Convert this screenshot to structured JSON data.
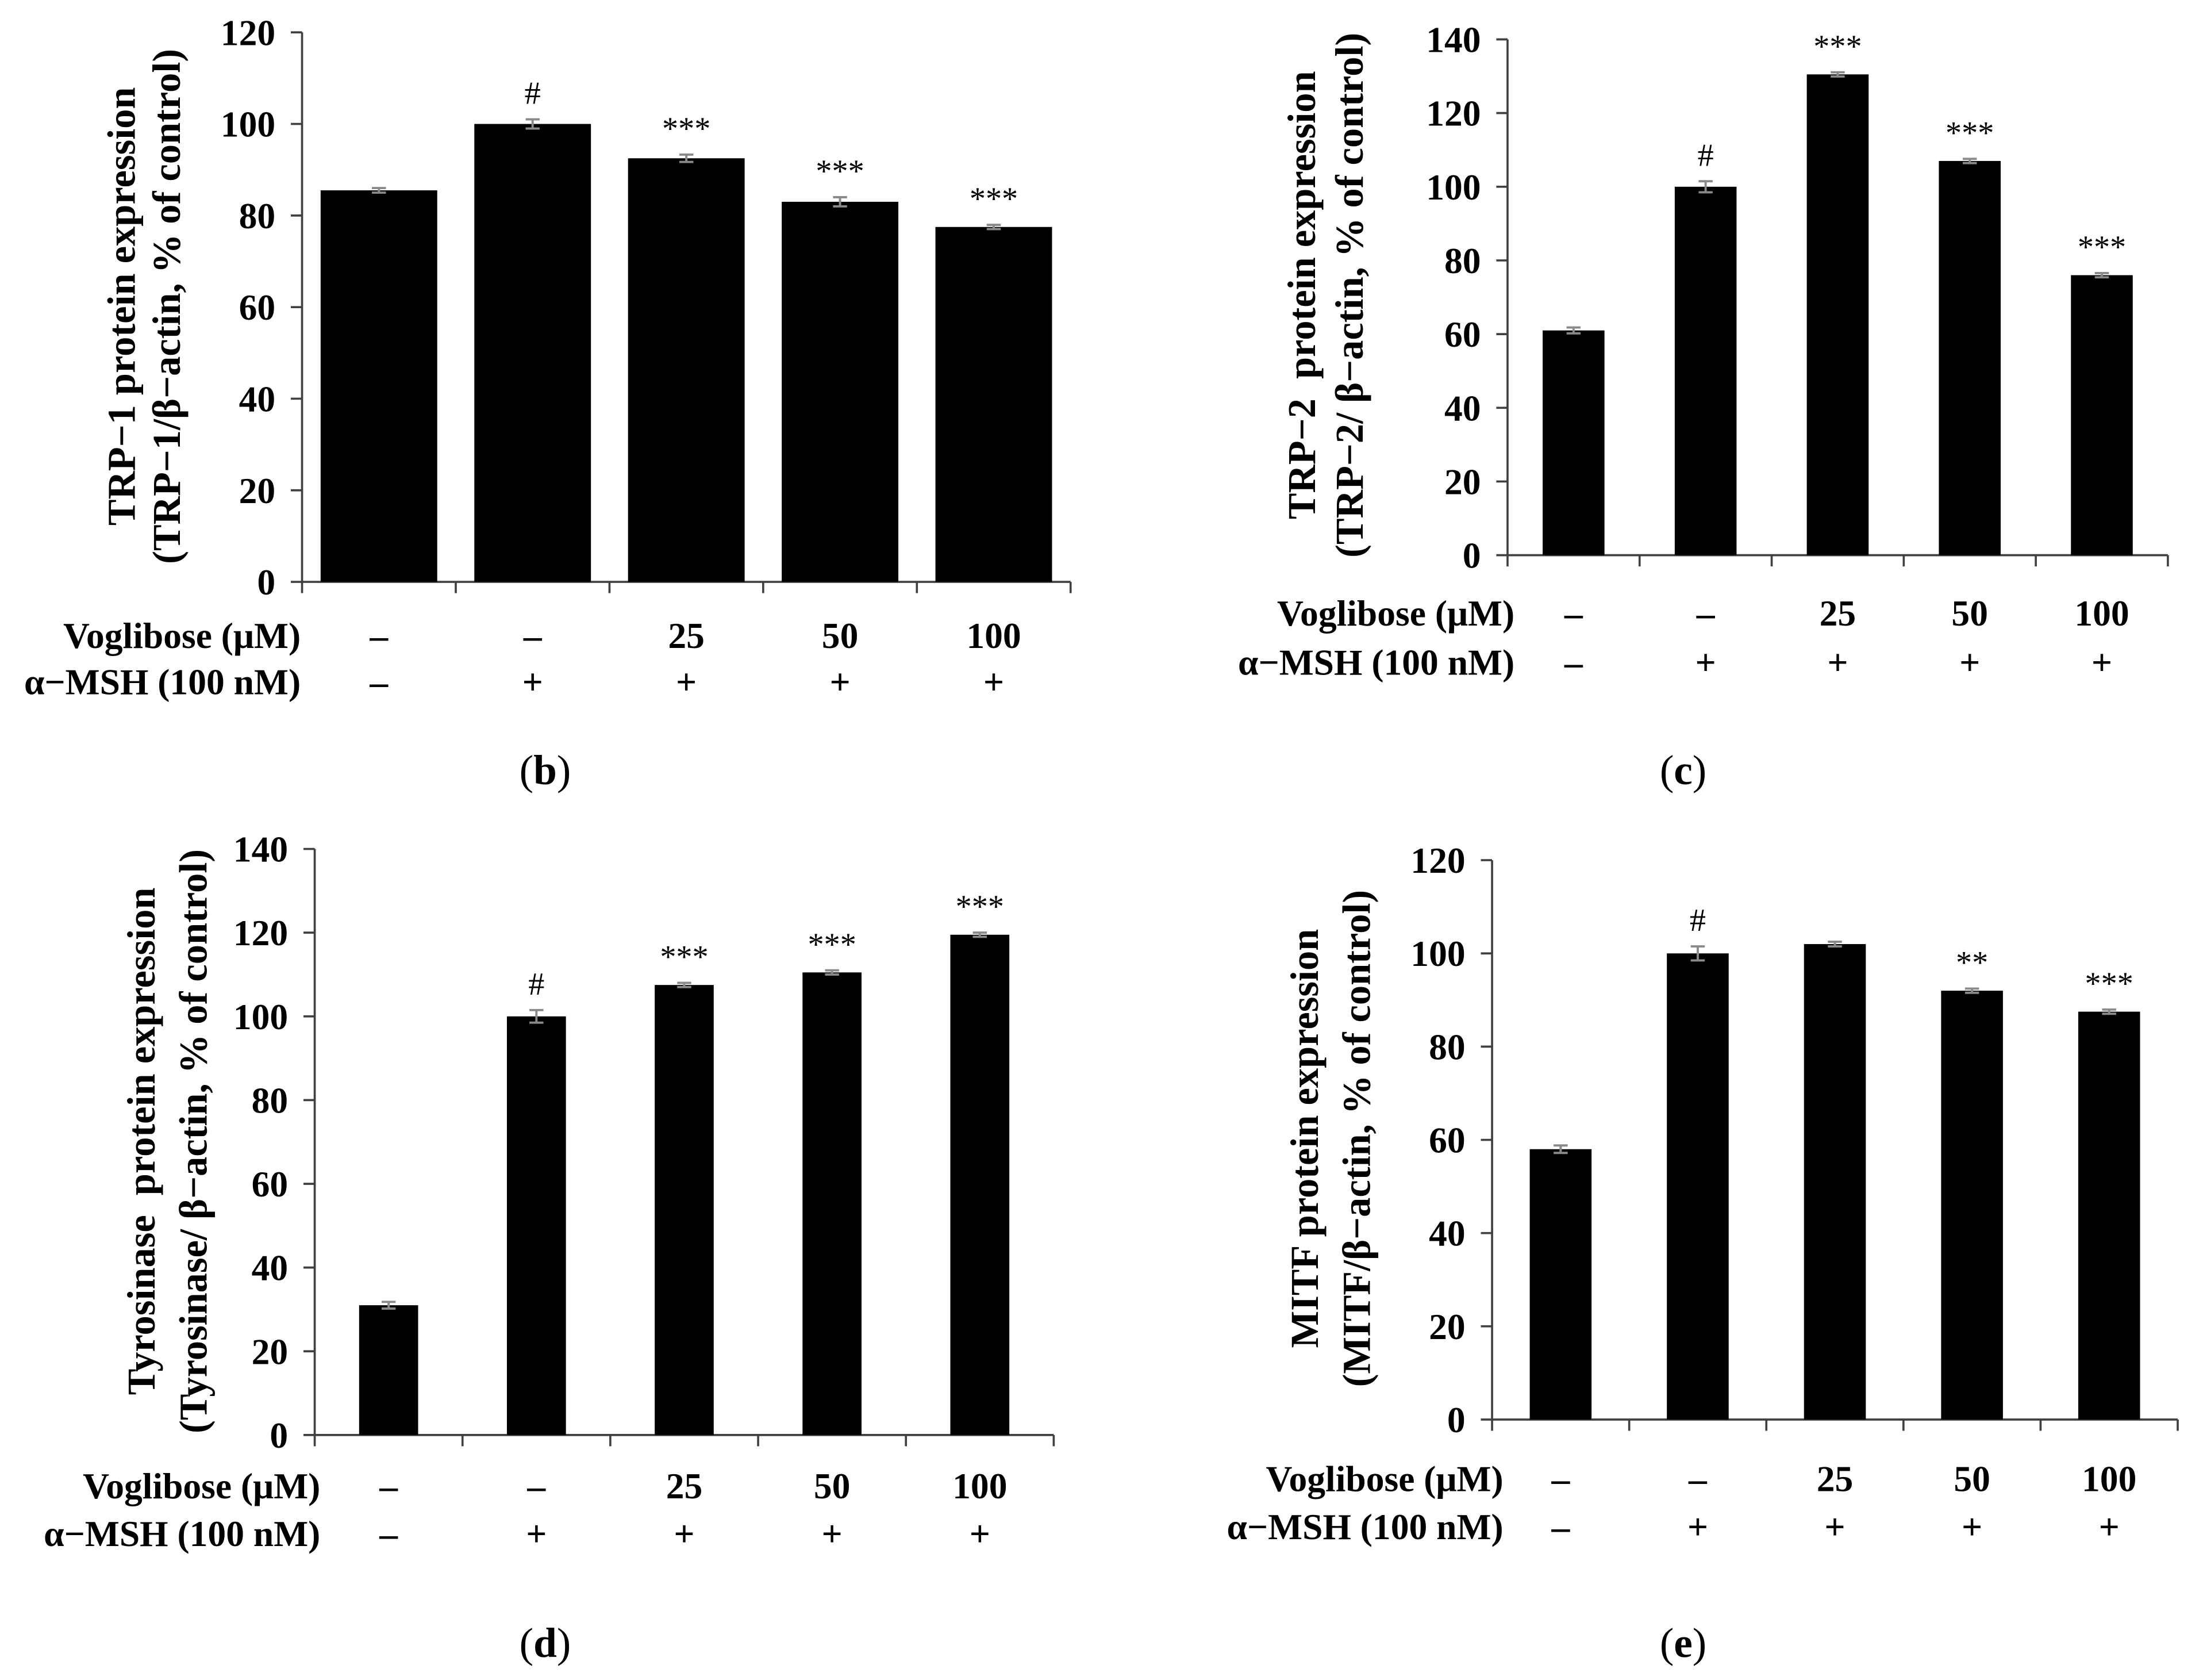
{
  "colors": {
    "bar": "#000000",
    "error_bar": "#8a8a8a"
  },
  "chart_data": [
    {
      "type": "bar",
      "panel_label_parts": [
        "(",
        "b",
        ")"
      ],
      "ylabel": [
        "TRP−1 protein expression",
        "(TRP−1/β−actin, % of control)"
      ],
      "ylim": [
        0,
        120
      ],
      "yticks": [
        0,
        20,
        40,
        60,
        80,
        100,
        120
      ],
      "values": [
        85.5,
        100,
        92.5,
        83,
        77.5
      ],
      "errors": [
        0.5,
        1.0,
        0.8,
        1.0,
        0.3
      ],
      "annotations": [
        "",
        "#",
        "***",
        "***",
        "***"
      ],
      "conditions": [
        {
          "label": "Voglibose (μM)",
          "values": [
            "–",
            "–",
            "25",
            "50",
            "100"
          ]
        },
        {
          "label": "α−MSH (100 nM)",
          "values": [
            "–",
            "+",
            "+",
            "+",
            "+"
          ]
        }
      ]
    },
    {
      "type": "bar",
      "panel_label_parts": [
        "(",
        "c",
        ")"
      ],
      "ylabel": [
        "TRP−2  protein expression",
        "(TRP−2/ β−actin, % of control)"
      ],
      "ylim": [
        0,
        140
      ],
      "yticks": [
        0,
        20,
        40,
        60,
        80,
        100,
        120,
        140
      ],
      "values": [
        61,
        100,
        130.5,
        107,
        76
      ],
      "errors": [
        0.8,
        1.5,
        0.5,
        0.4,
        0.3
      ],
      "annotations": [
        "",
        "#",
        "***",
        "***",
        "***"
      ],
      "conditions": [
        {
          "label": "Voglibose (μM)",
          "values": [
            "–",
            "–",
            "25",
            "50",
            "100"
          ]
        },
        {
          "label": "α−MSH (100 nM)",
          "values": [
            "–",
            "+",
            "+",
            "+",
            "+"
          ]
        }
      ]
    },
    {
      "type": "bar",
      "panel_label_parts": [
        "(",
        "d",
        ")"
      ],
      "ylabel": [
        "Tyrosinase  protein expression",
        "(Tyrosinase/ β−actin, % of control)"
      ],
      "ylim": [
        0,
        140
      ],
      "yticks": [
        0,
        20,
        40,
        60,
        80,
        100,
        120,
        140
      ],
      "values": [
        31,
        100,
        107.5,
        110.5,
        119.5
      ],
      "errors": [
        0.8,
        1.5,
        0.5,
        0.3,
        0.3
      ],
      "annotations": [
        "",
        "#",
        "***",
        "***",
        "***"
      ],
      "conditions": [
        {
          "label": "Voglibose (μM)",
          "values": [
            "–",
            "–",
            "25",
            "50",
            "100"
          ]
        },
        {
          "label": "α−MSH (100 nM)",
          "values": [
            "–",
            "+",
            "+",
            "+",
            "+"
          ]
        }
      ]
    },
    {
      "type": "bar",
      "panel_label_parts": [
        "(",
        "e",
        ")"
      ],
      "ylabel": [
        "MITF protein expression",
        "(MITF/β−actin, % of control)"
      ],
      "ylim": [
        0,
        120
      ],
      "yticks": [
        0,
        20,
        40,
        60,
        80,
        100,
        120
      ],
      "values": [
        58,
        100,
        102,
        92,
        87.5
      ],
      "errors": [
        0.8,
        1.5,
        0.5,
        0.3,
        0.3
      ],
      "annotations": [
        "",
        "#",
        "",
        "**",
        "***"
      ],
      "conditions": [
        {
          "label": "Voglibose (μM)",
          "values": [
            "–",
            "–",
            "25",
            "50",
            "100"
          ]
        },
        {
          "label": "α−MSH (100 nM)",
          "values": [
            "–",
            "+",
            "+",
            "+",
            "+"
          ]
        }
      ]
    }
  ]
}
